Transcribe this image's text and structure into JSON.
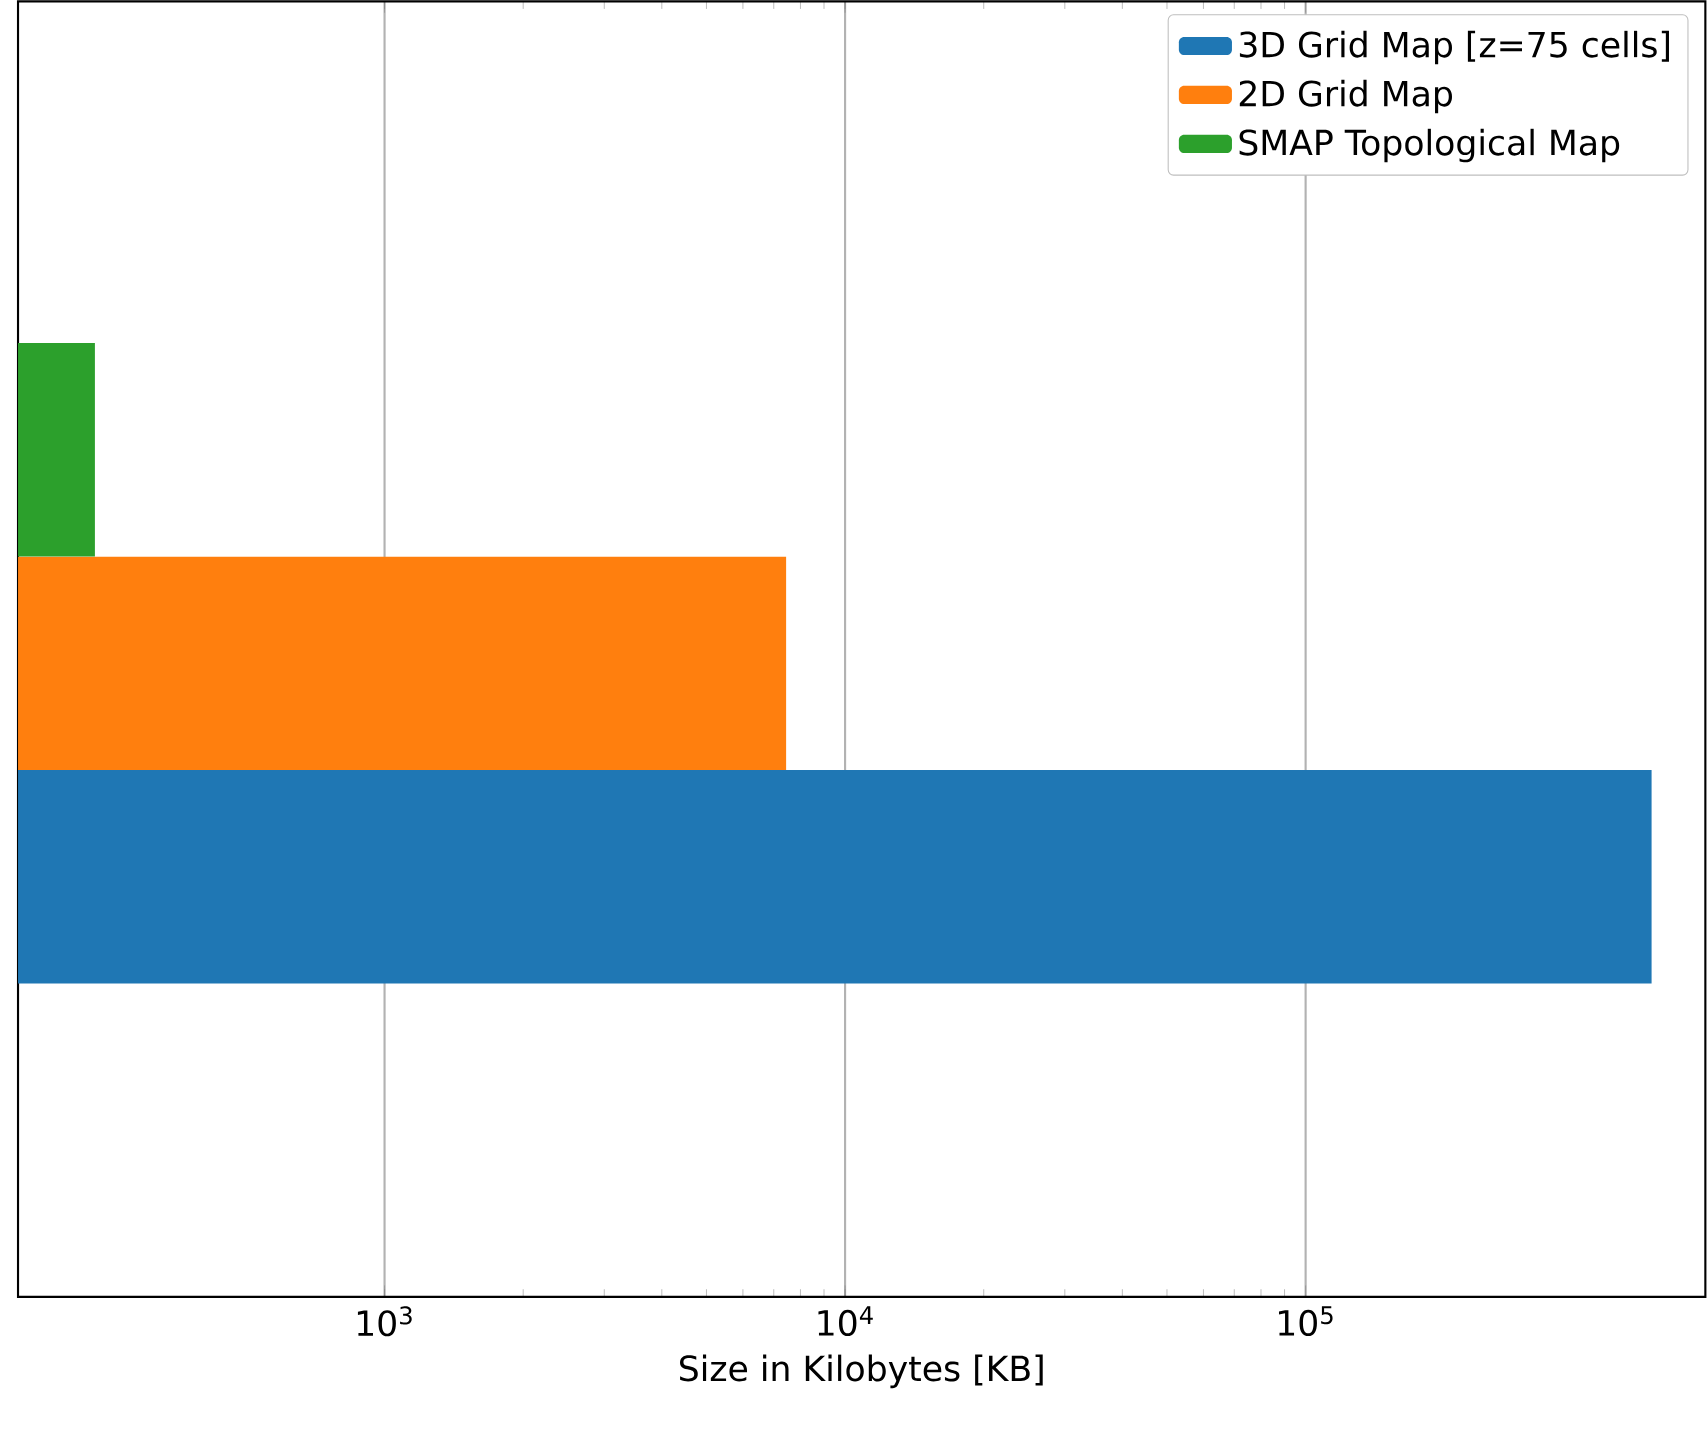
{
  "chart_data": {
    "type": "bar",
    "orientation": "horizontal",
    "categories": [
      null
    ],
    "series": [
      {
        "name": "3D Grid Map [z=75 cells]",
        "color": "#1f77b4",
        "values": [
          564000
        ]
      },
      {
        "name": "2D Grid Map",
        "color": "#ff7f0e",
        "values": [
          7450
        ]
      },
      {
        "name": "SMAP Topological Map",
        "color": "#2ca02c",
        "values": [
          235
        ]
      }
    ],
    "xlabel": "Size in Kilobytes [KB]",
    "log": "x",
    "xlim": [
      160,
      738000
    ],
    "xticks": [
      {
        "value": 1000,
        "label": "10$^{3}$"
      },
      {
        "value": 10000,
        "label": "10$^{4}$"
      },
      {
        "value": 100000,
        "label": "10$^{5}$"
      }
    ],
    "grid": "x",
    "legend": "top right",
    "tick_labels": "x"
  }
}
